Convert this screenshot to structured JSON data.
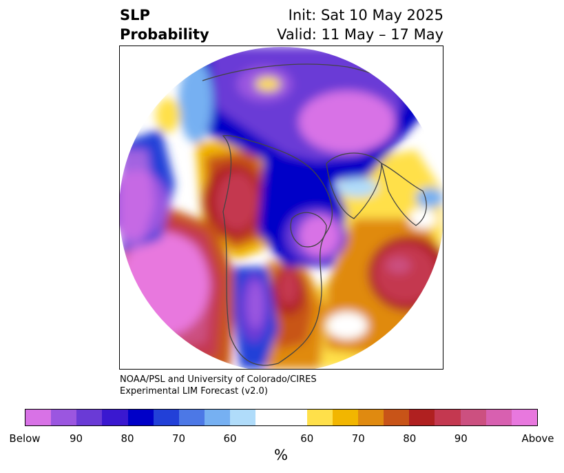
{
  "title": {
    "left_line1": "SLP",
    "left_line2": "Probability",
    "right_line1": "Init: Sat 10 May 2025",
    "right_line2": "Valid: 11 May – 17 May"
  },
  "credit": {
    "line1": "NOAA/PSL and University of Colorado/CIRES",
    "line2": "Experimental LIM Forecast (v2.0)"
  },
  "colorbar": {
    "units": "%",
    "colors": [
      "#d872e6",
      "#9b56e0",
      "#6a3ad6",
      "#3a18d0",
      "#0000c8",
      "#2240d8",
      "#4c78e6",
      "#76b0f2",
      "#b0dcfa",
      "#ffffff",
      "#ffe04a",
      "#f2b600",
      "#e08a10",
      "#c85418",
      "#b02020",
      "#c43850",
      "#cc5080",
      "#d860b0",
      "#e878de"
    ],
    "tick_labels": [
      "Below",
      "90",
      "80",
      "70",
      "60",
      "60",
      "70",
      "80",
      "90",
      "Above"
    ]
  },
  "map": {
    "projection": "north-polar-stereographic",
    "regions": [
      {
        "name": "positive-north-pacific",
        "category": "Above",
        "color": "#e878de"
      },
      {
        "name": "positive-western-canada",
        "category": "80-90 above",
        "color": "#c43850"
      },
      {
        "name": "positive-north-atlantic",
        "category": "80-90 above",
        "color": "#c43850"
      },
      {
        "name": "positive-eastern-us",
        "category": "80 above",
        "color": "#b02020"
      },
      {
        "name": "negative-siberia-arctic",
        "category": "Below",
        "color": "#d872e6"
      },
      {
        "name": "negative-hudson-bay",
        "category": "Below",
        "color": "#d872e6"
      },
      {
        "name": "negative-western-us",
        "category": "90 below",
        "color": "#9b56e0"
      },
      {
        "name": "negative-bering",
        "category": "Below",
        "color": "#d872e6"
      }
    ]
  }
}
